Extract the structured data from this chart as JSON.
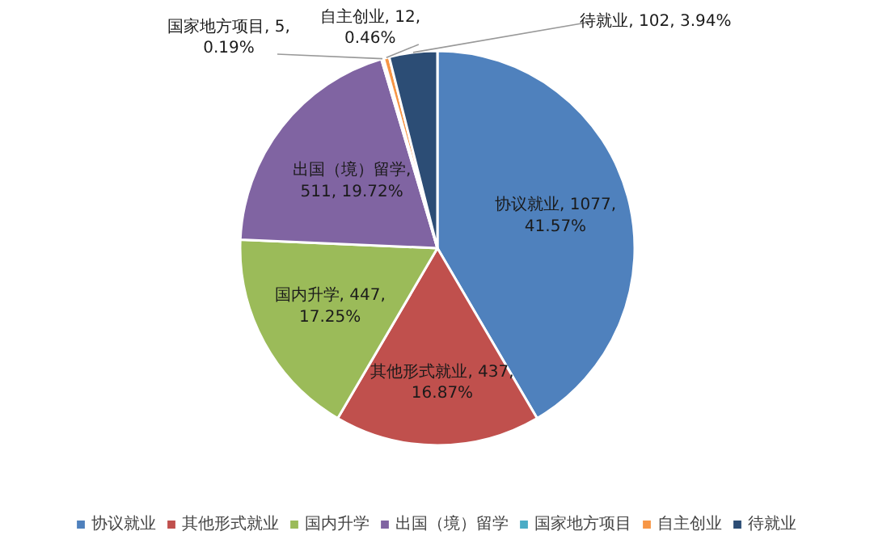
{
  "chart_data": {
    "type": "pie",
    "categories": [
      "协议就业",
      "其他形式就业",
      "国内升学",
      "出国（境）留学",
      "国家地方项目",
      "自主创业",
      "待就业"
    ],
    "values": [
      1077,
      437,
      447,
      511,
      5,
      12,
      102
    ],
    "colors": [
      "#4f81bd",
      "#c0504d",
      "#9bbb59",
      "#8064a2",
      "#4bacc6",
      "#f79646",
      "#2c4d75"
    ],
    "value_labels": [
      "协议就业, 1077, 41.57%",
      "其他形式就业, 437, 16.87%",
      "国内升学, 447, 17.25%",
      "出国（境）留学, 511, 19.72%",
      "国家地方项目, 5, 0.19%",
      "自主创业, 12, 0.46%",
      "待就业, 102, 3.94%"
    ],
    "legend": "bottom"
  }
}
